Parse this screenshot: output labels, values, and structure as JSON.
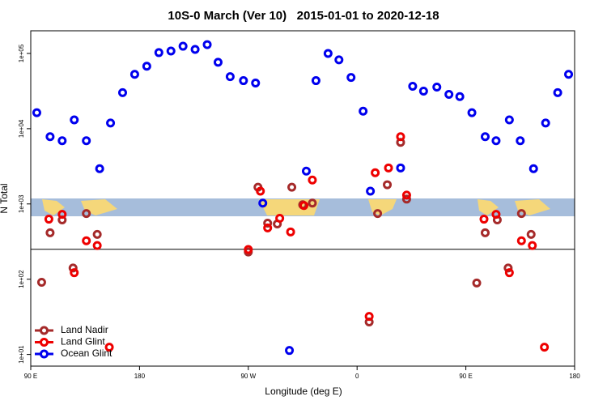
{
  "chart_data": {
    "type": "scatter",
    "title": "10S-0 March (Ver 10)   2015-01-01 to 2020-12-18",
    "xlabel": "Longitude (deg E)",
    "ylabel": "N Total",
    "log_y": true,
    "legend": "bottom-left",
    "xlim": [
      90,
      540
    ],
    "xticks": [
      {
        "value": 90,
        "label": "90 E"
      },
      180,
      {
        "value": 270,
        "label": "90 W"
      },
      {
        "value": 360,
        "label": "0"
      },
      {
        "value": 450,
        "label": "90 E"
      },
      {
        "value": 540,
        "label": "180"
      }
    ],
    "ylim": [
      7,
      200000
    ],
    "yticks": [
      {
        "value": 10,
        "label": "1e+01"
      },
      {
        "value": 100,
        "label": "1e+02"
      },
      {
        "value": 1000,
        "label": "1e+03"
      },
      {
        "value": 10000,
        "label": "1e+04"
      },
      {
        "value": 100000,
        "label": "1e+05"
      }
    ],
    "hline": 250,
    "series": [
      {
        "name": "Land Nadir",
        "color": "#a52a2a",
        "x": [
          99,
          106,
          116,
          125,
          136,
          145,
          270,
          278,
          286,
          294,
          306,
          323,
          315,
          370,
          377,
          385,
          396,
          401,
          459,
          466,
          476,
          485,
          496,
          504
        ],
        "values": [
          91,
          414,
          613,
          141,
          745,
          394,
          230,
          1670,
          556,
          542,
          1670,
          1025,
          975,
          27,
          745,
          1800,
          6590,
          1160,
          89,
          414,
          613,
          141,
          745,
          394
        ]
      },
      {
        "name": "Land Glint",
        "color": "#ee0000",
        "x": [
          105,
          116,
          126,
          136,
          145,
          155,
          270,
          280,
          286,
          296,
          305,
          316,
          323,
          370,
          375,
          386,
          396,
          401,
          465,
          475,
          486,
          496,
          505,
          515
        ],
        "values": [
          628,
          728,
          122,
          324,
          280,
          12.5,
          248,
          1480,
          480,
          644,
          425,
          953,
          2080,
          32,
          2600,
          3010,
          7830,
          1310,
          628,
          728,
          122,
          324,
          280,
          12.5
        ]
      },
      {
        "name": "Ocean Glint",
        "color": "#0000ee",
        "x": [
          95,
          106,
          116,
          126,
          136,
          147,
          156,
          166,
          176,
          186,
          196,
          206,
          216,
          226,
          236,
          245,
          255,
          266,
          276,
          282,
          304,
          318,
          326,
          336,
          345,
          355,
          365,
          371,
          396,
          406,
          415,
          426,
          436,
          445,
          455,
          466,
          475,
          486,
          495,
          506,
          516,
          526,
          535
        ],
        "values": [
          16300,
          7830,
          6920,
          13100,
          6920,
          2940,
          11900,
          30100,
          52800,
          67600,
          102600,
          107600,
          124700,
          113000,
          131000,
          76400,
          49100,
          43500,
          40400,
          1025,
          11.3,
          2730,
          43500,
          100000,
          82200,
          48000,
          17100,
          1480,
          3010,
          36600,
          31600,
          35700,
          28600,
          26700,
          16300,
          7830,
          6920,
          13100,
          6920,
          2940,
          11900,
          30100,
          52800
        ]
      }
    ]
  }
}
